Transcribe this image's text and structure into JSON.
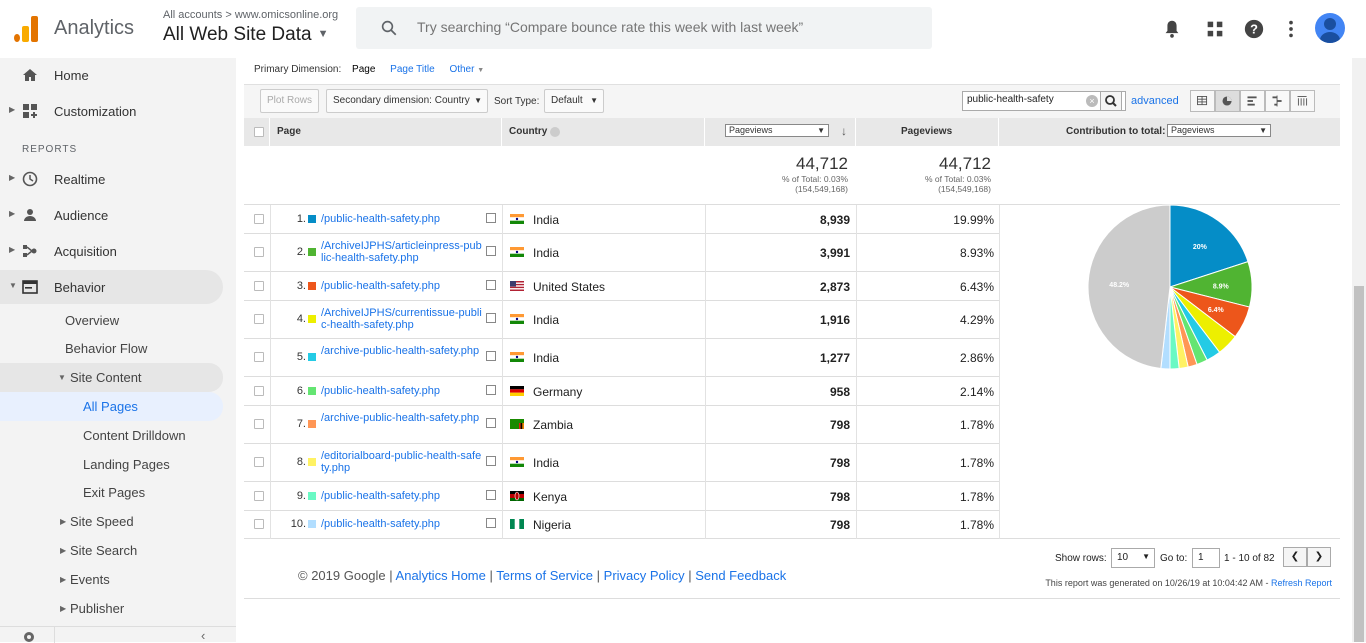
{
  "header": {
    "app_name": "Analytics",
    "account_crumb": "All accounts > www.omicsonline.org",
    "view_name": "All Web Site Data",
    "search_placeholder": "Try searching “Compare bounce rate this week with last week”",
    "icons": [
      "notifications-icon",
      "apps-grid-icon",
      "help-icon",
      "more-vert-icon",
      "account-avatar"
    ]
  },
  "sidebar": {
    "top_items": [
      {
        "label": "Home",
        "icon": "home-icon"
      },
      {
        "label": "Customization",
        "icon": "customization-icon"
      }
    ],
    "reports_label": "REPORTS",
    "report_items": [
      {
        "label": "Realtime",
        "icon": "clock-icon"
      },
      {
        "label": "Audience",
        "icon": "person-icon"
      },
      {
        "label": "Acquisition",
        "icon": "acquisition-icon"
      },
      {
        "label": "Behavior",
        "icon": "behavior-icon"
      }
    ],
    "behavior_sub": [
      "Overview",
      "Behavior Flow"
    ],
    "site_content": "Site Content",
    "site_content_sub": [
      "All Pages",
      "Content Drilldown",
      "Landing Pages",
      "Exit Pages"
    ],
    "behavior_more": [
      "Site Speed",
      "Site Search",
      "Events",
      "Publisher"
    ]
  },
  "primary_dimension": {
    "label": "Primary Dimension:",
    "selected": "Page",
    "options": [
      "Page Title",
      "Other"
    ]
  },
  "toolbar": {
    "plot_rows": "Plot Rows",
    "secondary_dimension": "Secondary dimension: Country",
    "sort_type_label": "Sort Type:",
    "sort_type": "Default",
    "filter_value": "public-health-safety",
    "advanced": "advanced"
  },
  "table": {
    "headers": {
      "page": "Page",
      "country": "Country",
      "metric_select": "Pageviews",
      "metric2": "Pageviews",
      "contribution_label": "Contribution to total:",
      "contribution_select": "Pageviews"
    },
    "totals": {
      "value": "44,712",
      "pct": "% of Total: 0.03%",
      "of": "(154,549,168)"
    },
    "rows": [
      {
        "num": "1.",
        "page": "/public-health-safety.php",
        "country": "India",
        "flag": "in",
        "pageviews": "8,939",
        "pct": "19.99%",
        "color": "#058dc7"
      },
      {
        "num": "2.",
        "page": "/ArchiveIJPHS/articleinpress-public-health-safety.php",
        "country": "India",
        "flag": "in",
        "pageviews": "3,991",
        "pct": "8.93%",
        "color": "#50b432"
      },
      {
        "num": "3.",
        "page": "/public-health-safety.php",
        "country": "United States",
        "flag": "us",
        "pageviews": "2,873",
        "pct": "6.43%",
        "color": "#ed561b"
      },
      {
        "num": "4.",
        "page": "/ArchiveIJPHS/currentissue-public-health-safety.php",
        "country": "India",
        "flag": "in",
        "pageviews": "1,916",
        "pct": "4.29%",
        "color": "#edef00"
      },
      {
        "num": "5.",
        "page": "/archive-public-health-safety.php",
        "country": "India",
        "flag": "in",
        "pageviews": "1,277",
        "pct": "2.86%",
        "color": "#24cbe5"
      },
      {
        "num": "6.",
        "page": "/public-health-safety.php",
        "country": "Germany",
        "flag": "de",
        "pageviews": "958",
        "pct": "2.14%",
        "color": "#64e572"
      },
      {
        "num": "7.",
        "page": "/archive-public-health-safety.php",
        "country": "Zambia",
        "flag": "zm",
        "pageviews": "798",
        "pct": "1.78%",
        "color": "#ff9655"
      },
      {
        "num": "8.",
        "page": "/editorialboard-public-health-safety.php",
        "country": "India",
        "flag": "in",
        "pageviews": "798",
        "pct": "1.78%",
        "color": "#fff263"
      },
      {
        "num": "9.",
        "page": "/public-health-safety.php",
        "country": "Kenya",
        "flag": "ke",
        "pageviews": "798",
        "pct": "1.78%",
        "color": "#6af9c4"
      },
      {
        "num": "10.",
        "page": "/public-health-safety.php",
        "country": "Nigeria",
        "flag": "ng",
        "pageviews": "798",
        "pct": "1.78%",
        "color": "#b2deff"
      }
    ],
    "pie": {
      "slices": [
        19.99,
        8.93,
        6.43,
        4.29,
        2.86,
        2.14,
        1.78,
        1.78,
        1.78,
        1.78,
        48.2
      ],
      "labels": [
        "20%",
        "8.9%",
        "6.4%",
        "",
        "",
        "",
        "",
        "",
        "",
        "",
        "48.2%"
      ],
      "other_color": "#cccccc"
    }
  },
  "pager": {
    "show_rows_label": "Show rows:",
    "rows": "10",
    "goto_label": "Go to:",
    "goto": "1",
    "range": "1 - 10 of 82",
    "generated": "This report was generated on 10/26/19 at 10:04:42 AM - ",
    "refresh": "Refresh Report"
  },
  "footer": {
    "copyright": "© 2019 Google",
    "links": [
      "Analytics Home",
      "Terms of Service",
      "Privacy Policy",
      "Send Feedback"
    ]
  }
}
